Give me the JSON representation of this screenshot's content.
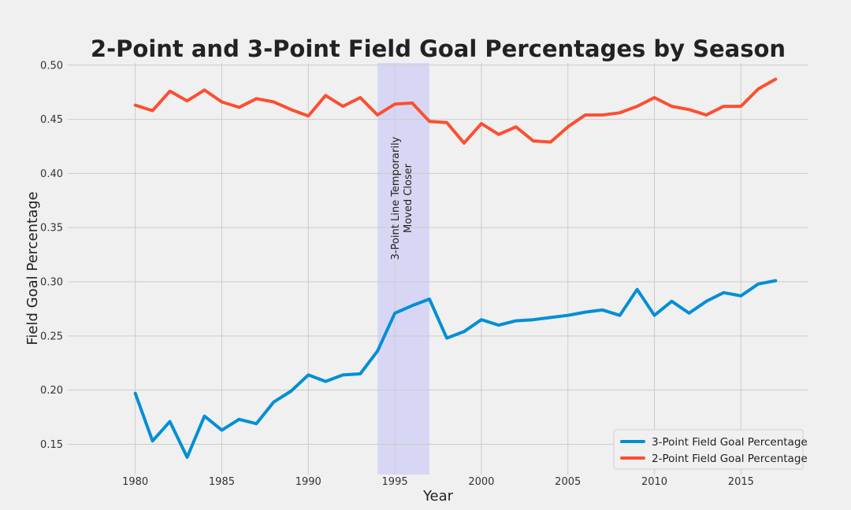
{
  "chart_data": {
    "type": "line",
    "title": "2-Point and 3-Point Field Goal Percentages by Season",
    "xlabel": "Year",
    "ylabel": "Field Goal Percentage",
    "xlim": [
      1976.1,
      2018.9
    ],
    "ylim": [
      0.122,
      0.502
    ],
    "xticks": [
      1980,
      1985,
      1990,
      1995,
      2000,
      2005,
      2010,
      2015
    ],
    "yticks": [
      0.15,
      0.2,
      0.25,
      0.3,
      0.35,
      0.4,
      0.45,
      0.5
    ],
    "ytick_labels": [
      "0.15",
      "0.20",
      "0.25",
      "0.30",
      "0.35",
      "0.40",
      "0.45",
      "0.50"
    ],
    "grid": true,
    "legend_position": "lower-right",
    "x": [
      1980,
      1981,
      1982,
      1983,
      1984,
      1985,
      1986,
      1987,
      1988,
      1989,
      1990,
      1991,
      1992,
      1993,
      1994,
      1995,
      1996,
      1997,
      1998,
      1999,
      2000,
      2001,
      2002,
      2003,
      2004,
      2005,
      2006,
      2007,
      2008,
      2009,
      2010,
      2011,
      2012,
      2013,
      2014,
      2015,
      2016,
      2017
    ],
    "series": [
      {
        "name": "3-Point Field Goal Percentage",
        "color": "#008fd5",
        "values": [
          0.197,
          0.153,
          0.171,
          0.138,
          0.176,
          0.163,
          0.173,
          0.169,
          0.189,
          0.199,
          0.214,
          0.208,
          0.214,
          0.215,
          0.236,
          0.271,
          0.278,
          0.284,
          0.248,
          0.254,
          0.265,
          0.26,
          0.264,
          0.265,
          0.267,
          0.269,
          0.272,
          0.274,
          0.269,
          0.293,
          0.269,
          0.282,
          0.271,
          0.282,
          0.29,
          0.287,
          0.298,
          0.301
        ]
      },
      {
        "name": "2-Point Field Goal Percentage",
        "color": "#fc4f30",
        "values": [
          0.463,
          0.458,
          0.476,
          0.467,
          0.477,
          0.466,
          0.461,
          0.469,
          0.466,
          0.459,
          0.453,
          0.472,
          0.462,
          0.47,
          0.454,
          0.464,
          0.465,
          0.448,
          0.447,
          0.428,
          0.446,
          0.436,
          0.443,
          0.43,
          0.429,
          0.443,
          0.454,
          0.454,
          0.456,
          0.462,
          0.47,
          0.462,
          0.459,
          0.454,
          0.462,
          0.462,
          0.478,
          0.487
        ]
      }
    ],
    "highlight": {
      "x_start": 1994,
      "x_end": 1997,
      "color": "#d7d7f5",
      "label_lines": [
        "3-Point Line Temporarily",
        "Moved Closer"
      ]
    }
  }
}
